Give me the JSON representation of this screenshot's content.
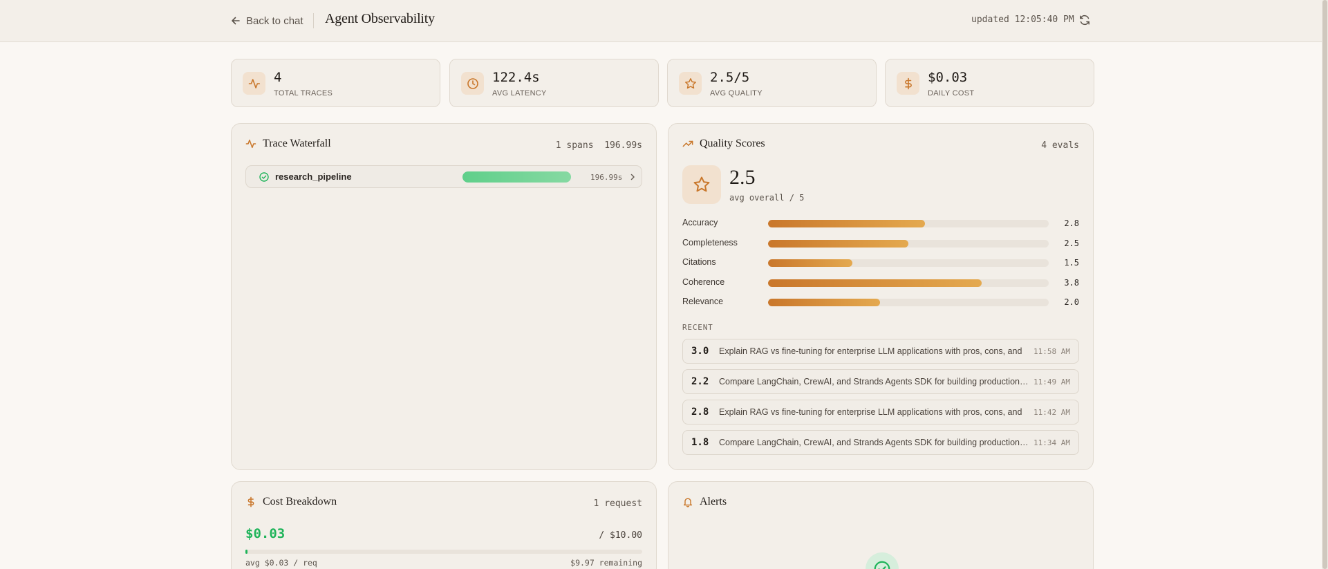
{
  "header": {
    "back_label": "Back to chat",
    "title": "Agent Observability",
    "updated": "updated 12:05:40 PM"
  },
  "stats": [
    {
      "value": "4",
      "label": "TOTAL TRACES",
      "icon": "activity-icon"
    },
    {
      "value": "122.4s",
      "label": "AVG LATENCY",
      "icon": "clock-icon"
    },
    {
      "value": "2.5/5",
      "label": "AVG QUALITY",
      "icon": "star-icon"
    },
    {
      "value": "$0.03",
      "label": "DAILY COST",
      "icon": "dollar-icon"
    }
  ],
  "waterfall": {
    "title": "Trace Waterfall",
    "spans_label": "1 spans",
    "total": "196.99s",
    "span": {
      "name": "research_pipeline",
      "duration": "196.99s",
      "progress": 1.0
    }
  },
  "quality": {
    "title": "Quality Scores",
    "evals": "4 evals",
    "avg": "2.5",
    "avg_sub": "avg overall / 5",
    "metrics": [
      {
        "label": "Accuracy",
        "value": "2.8",
        "score": 2.8
      },
      {
        "label": "Completeness",
        "value": "2.5",
        "score": 2.5
      },
      {
        "label": "Citations",
        "value": "1.5",
        "score": 1.5
      },
      {
        "label": "Coherence",
        "value": "3.8",
        "score": 3.8
      },
      {
        "label": "Relevance",
        "value": "2.0",
        "score": 2.0
      }
    ],
    "max_score": 5,
    "recent_label": "RECENT",
    "recent": [
      {
        "score": "3.0",
        "text": "Explain RAG vs fine-tuning for enterprise LLM applications with pros, cons, and",
        "time": "11:58 AM"
      },
      {
        "score": "2.2",
        "text": "Compare LangChain, CrewAI, and Strands Agents SDK for building production AI agents",
        "time": "11:49 AM"
      },
      {
        "score": "2.8",
        "text": "Explain RAG vs fine-tuning for enterprise LLM applications with pros, cons, and",
        "time": "11:42 AM"
      },
      {
        "score": "1.8",
        "text": "Compare LangChain, CrewAI, and Strands Agents SDK for building production AI agents",
        "time": "11:34 AM"
      }
    ]
  },
  "cost": {
    "title": "Cost Breakdown",
    "requests": "1 request",
    "value": "$0.03",
    "budget": "/ $10.00",
    "used_fraction": 0.003,
    "avg": "avg $0.03 / req",
    "remaining": "$9.97 remaining"
  },
  "alerts": {
    "title": "Alerts"
  },
  "colors": {
    "accent": "#c9772b",
    "success": "#1fb45a",
    "background": "#faf7f3"
  }
}
